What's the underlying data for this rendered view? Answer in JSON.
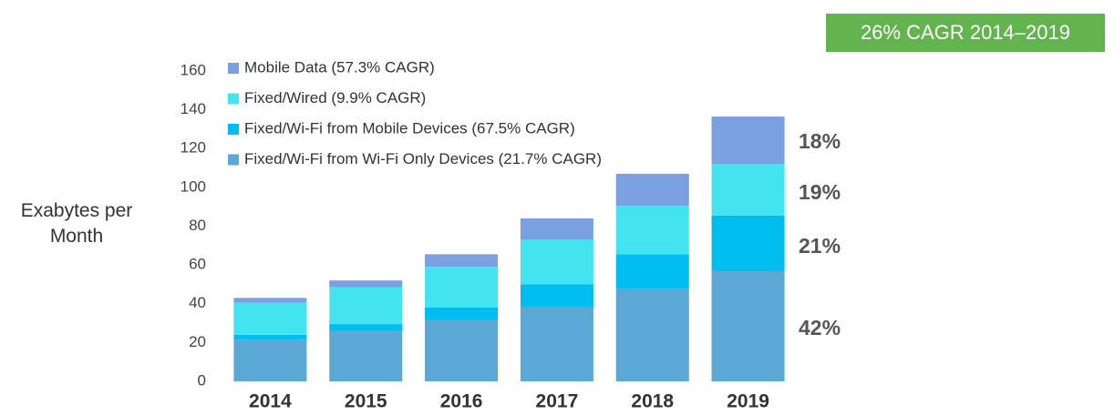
{
  "chart_data": {
    "type": "stacked_bar",
    "y_axis_label": "Exabytes per Month",
    "categories": [
      "2014",
      "2015",
      "2016",
      "2017",
      "2018",
      "2019"
    ],
    "series": [
      {
        "name": "Mobile Data (57.3% CAGR)",
        "color": "#7aa0e2",
        "values": [
          2.5,
          3.5,
          6.5,
          11,
          16.5,
          24.5
        ]
      },
      {
        "name": "Fixed/Wired (9.9% CAGR)",
        "color": "#42e4ef",
        "values": [
          16.5,
          19,
          21,
          23,
          25,
          26.5
        ]
      },
      {
        "name": "Fixed/Wi-Fi from Mobile Devices (67.5% CAGR)",
        "color": "#00bdf0",
        "values": [
          2.5,
          3.5,
          6.5,
          11.5,
          18,
          28.5
        ]
      },
      {
        "name": "Fixed/Wi-Fi from Wi-Fi Only Devices (21.7% CAGR)",
        "color": "#5ba8d5",
        "values": [
          21.5,
          26,
          31.5,
          38.5,
          47.5,
          57
        ]
      }
    ],
    "ylim": [
      0,
      160
    ],
    "yticks": [
      0,
      20,
      40,
      60,
      80,
      100,
      120,
      140,
      160
    ],
    "annotations": [
      "18%",
      "19%",
      "21%",
      "42%"
    ],
    "callout": "26% CAGR 2014–2019"
  }
}
